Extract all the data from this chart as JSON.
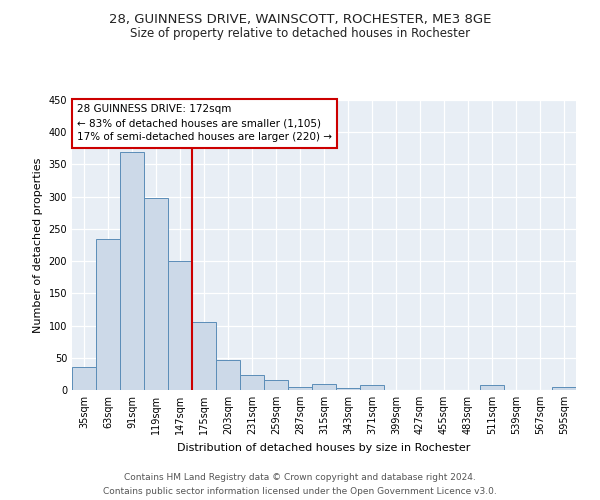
{
  "title1": "28, GUINNESS DRIVE, WAINSCOTT, ROCHESTER, ME3 8GE",
  "title2": "Size of property relative to detached houses in Rochester",
  "xlabel": "Distribution of detached houses by size in Rochester",
  "ylabel": "Number of detached properties",
  "bar_labels": [
    "35sqm",
    "63sqm",
    "91sqm",
    "119sqm",
    "147sqm",
    "175sqm",
    "203sqm",
    "231sqm",
    "259sqm",
    "287sqm",
    "315sqm",
    "343sqm",
    "371sqm",
    "399sqm",
    "427sqm",
    "455sqm",
    "483sqm",
    "511sqm",
    "539sqm",
    "567sqm",
    "595sqm"
  ],
  "bar_values": [
    35,
    235,
    370,
    298,
    200,
    105,
    47,
    23,
    16,
    4,
    10,
    3,
    8,
    0,
    0,
    0,
    0,
    8,
    0,
    0,
    4
  ],
  "bar_color_fill": "#ccd9e8",
  "bar_color_edge": "#5b8db8",
  "vline_x": 5.0,
  "vline_color": "#cc0000",
  "annotation_text": "28 GUINNESS DRIVE: 172sqm\n← 83% of detached houses are smaller (1,105)\n17% of semi-detached houses are larger (220) →",
  "annotation_box_color": "#ffffff",
  "annotation_box_edge": "#cc0000",
  "ylim": [
    0,
    450
  ],
  "yticks": [
    0,
    50,
    100,
    150,
    200,
    250,
    300,
    350,
    400,
    450
  ],
  "footer1": "Contains HM Land Registry data © Crown copyright and database right 2024.",
  "footer2": "Contains public sector information licensed under the Open Government Licence v3.0.",
  "bg_color": "#e8eef5",
  "title1_fontsize": 9.5,
  "title2_fontsize": 8.5,
  "xlabel_fontsize": 8,
  "ylabel_fontsize": 8,
  "tick_fontsize": 7,
  "annotation_fontsize": 7.5,
  "footer_fontsize": 6.5
}
